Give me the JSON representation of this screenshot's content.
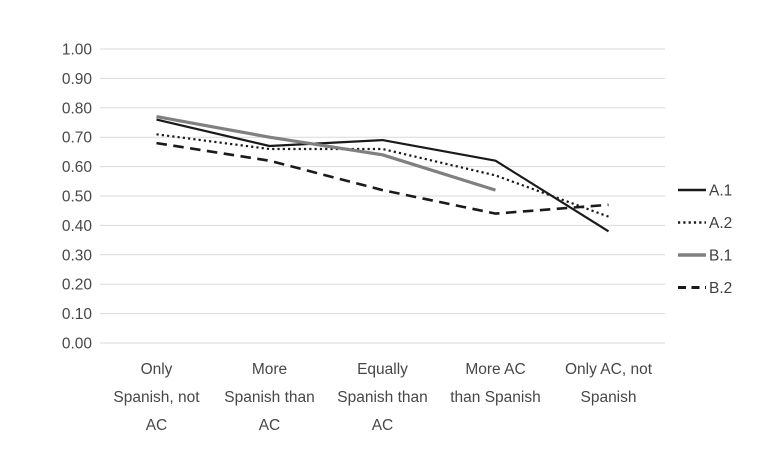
{
  "chart_data": {
    "type": "line",
    "title": "",
    "xlabel": "",
    "ylabel": "",
    "ylim": [
      0.0,
      1.0
    ],
    "y_tick_step": 0.1,
    "y_ticks": [
      "1.00",
      "0.90",
      "0.80",
      "0.70",
      "0.60",
      "0.50",
      "0.40",
      "0.30",
      "0.20",
      "0.10",
      "0.00"
    ],
    "grid": true,
    "legend_position": "right",
    "categories": [
      "Only Spanish, not AC",
      "More Spanish than AC",
      "Equally Spanish than AC",
      "More AC than Spanish",
      "Only AC, not Spanish"
    ],
    "category_label_lines": [
      [
        "Only",
        "Spanish, not",
        "AC"
      ],
      [
        "More",
        "Spanish than",
        "AC"
      ],
      [
        "Equally",
        "Spanish than",
        "AC"
      ],
      [
        "More AC",
        "than Spanish"
      ],
      [
        "Only AC, not",
        "Spanish"
      ]
    ],
    "series": [
      {
        "name": "A.1",
        "style": "solid",
        "color": "#1a1a1a",
        "width": 2.2,
        "values": [
          0.76,
          0.67,
          0.69,
          0.62,
          0.38
        ]
      },
      {
        "name": "A.2",
        "style": "dotted",
        "color": "#1a1a1a",
        "width": 2.2,
        "values": [
          0.71,
          0.66,
          0.66,
          0.57,
          0.43
        ]
      },
      {
        "name": "B.1",
        "style": "solid",
        "color": "#808080",
        "width": 3.2,
        "values": [
          0.77,
          0.7,
          0.64,
          0.52,
          null
        ]
      },
      {
        "name": "B.2",
        "style": "dashed",
        "color": "#1a1a1a",
        "width": 2.6,
        "values": [
          0.68,
          0.62,
          0.52,
          0.44,
          0.47
        ]
      }
    ],
    "colors": {
      "background": "#ffffff",
      "gridline": "#dadada",
      "axis_text": "#474747",
      "legend_text": "#3f3f3f"
    }
  }
}
